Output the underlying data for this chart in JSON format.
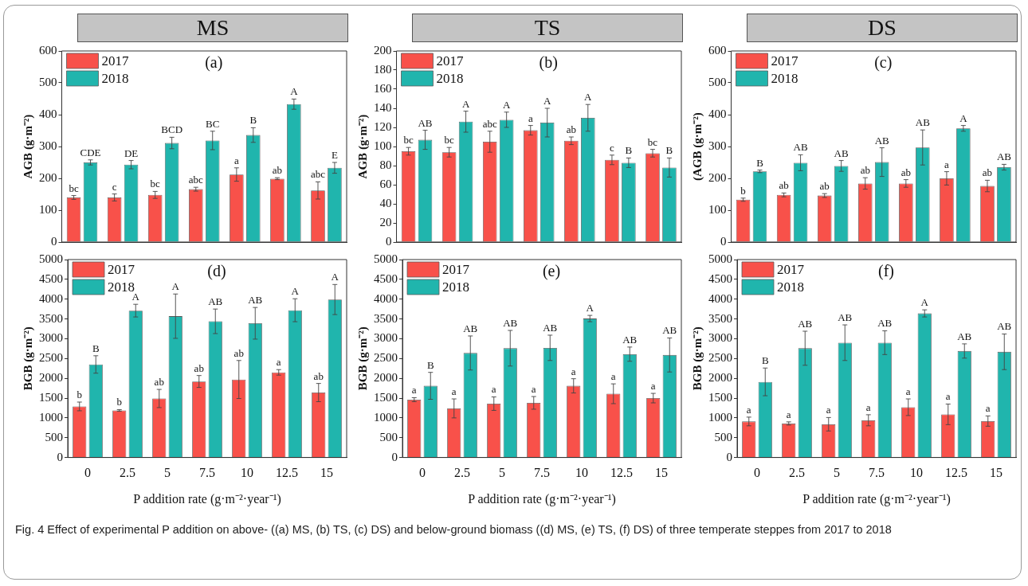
{
  "chart_data": [
    {
      "type": "bar",
      "title": "MS",
      "categories": [
        "0",
        "2.5",
        "5",
        "7.5",
        "10",
        "12.5",
        "15"
      ],
      "ylabel": "AGB (g·m⁻²)",
      "ylim": [
        0,
        600
      ],
      "yticks": [
        0,
        100,
        200,
        300,
        400,
        500,
        600
      ],
      "tick_labels": "y",
      "legend": "top left",
      "annotations": [
        "(a)"
      ],
      "series": [
        {
          "name": "2017",
          "color": "#f8514a",
          "values": [
            140,
            140,
            148,
            166,
            212,
            199,
            162
          ],
          "errors": [
            6,
            11,
            11,
            6,
            21,
            3,
            27
          ],
          "value_labels": [
            "bc",
            "c",
            "bc",
            "abc",
            "a",
            "ab",
            "abc"
          ]
        },
        {
          "name": "2018",
          "color": "#20b5ad",
          "values": [
            250,
            243,
            311,
            319,
            336,
            433,
            233
          ],
          "errors": [
            8,
            13,
            18,
            29,
            23,
            16,
            17
          ],
          "value_labels": [
            "CDE",
            "DE",
            "BCD",
            "BC",
            "B",
            "A",
            "E"
          ]
        }
      ]
    },
    {
      "type": "bar",
      "title": "TS",
      "categories": [
        "0",
        "2.5",
        "5",
        "7.5",
        "10",
        "12.5",
        "15"
      ],
      "ylabel": "AGB (g·m⁻²)",
      "ylim": [
        0,
        200
      ],
      "yticks": [
        0,
        20,
        40,
        60,
        80,
        100,
        120,
        140,
        160,
        180,
        200
      ],
      "tick_labels": "y",
      "legend": "top left",
      "annotations": [
        "(b)"
      ],
      "series": [
        {
          "name": "2017",
          "color": "#f8514a",
          "values": [
            95,
            94,
            105,
            117,
            106,
            86,
            93
          ],
          "errors": [
            4,
            5,
            11,
            5,
            4,
            5,
            4
          ],
          "value_labels": [
            "bc",
            "bc",
            "abc",
            "a",
            "ab",
            "c",
            "bc"
          ]
        },
        {
          "name": "2018",
          "color": "#20b5ad",
          "values": [
            107,
            126,
            128,
            125,
            130,
            83,
            78
          ],
          "errors": [
            10,
            11,
            8,
            15,
            14,
            5,
            10
          ],
          "value_labels": [
            "AB",
            "A",
            "A",
            "A",
            "A",
            "B",
            "B"
          ]
        }
      ]
    },
    {
      "type": "bar",
      "title": "DS",
      "categories": [
        "0",
        "2.5",
        "5",
        "7.5",
        "10",
        "12.5",
        "15"
      ],
      "ylabel": "(AGB (g·m⁻²)",
      "ylim": [
        0,
        600
      ],
      "yticks": [
        0,
        100,
        200,
        300,
        400,
        500,
        600
      ],
      "tick_labels": "y",
      "legend": "top left",
      "annotations": [
        "(c)"
      ],
      "series": [
        {
          "name": "2017",
          "color": "#f8514a",
          "values": [
            133,
            148,
            146,
            184,
            184,
            200,
            176
          ],
          "errors": [
            5,
            6,
            6,
            18,
            12,
            21,
            18
          ],
          "value_labels": [
            "b",
            "ab",
            "ab",
            "ab",
            "ab",
            "a",
            "ab"
          ]
        },
        {
          "name": "2018",
          "color": "#20b5ad",
          "values": [
            222,
            249,
            239,
            251,
            297,
            357,
            235
          ],
          "errors": [
            4,
            25,
            17,
            45,
            55,
            9,
            9
          ],
          "value_labels": [
            "B",
            "AB",
            "AB",
            "AB",
            "AB",
            "A",
            "AB"
          ]
        }
      ]
    },
    {
      "type": "bar",
      "categories": [
        "0",
        "2.5",
        "5",
        "7.5",
        "10",
        "12.5",
        "15"
      ],
      "xlabel": "P addition rate (g·m⁻²·year⁻¹)",
      "ylabel": "BGB (g·m⁻²)",
      "ylim": [
        0,
        5000
      ],
      "yticks": [
        0,
        500,
        1000,
        1500,
        2000,
        2500,
        3000,
        3500,
        4000,
        4500,
        5000
      ],
      "legend": "top left",
      "annotations": [
        "(d)"
      ],
      "series": [
        {
          "name": "2017",
          "color": "#f8514a",
          "values": [
            1290,
            1190,
            1490,
            1920,
            1970,
            2150,
            1640
          ],
          "errors": [
            110,
            20,
            230,
            150,
            480,
            70,
            230
          ],
          "value_labels": [
            "b",
            "b",
            "ab",
            "ab",
            "ab",
            "a",
            "ab"
          ]
        },
        {
          "name": "2018",
          "color": "#20b5ad",
          "values": [
            2350,
            3710,
            3570,
            3440,
            3390,
            3720,
            3990
          ],
          "errors": [
            220,
            160,
            560,
            310,
            400,
            290,
            380
          ],
          "value_labels": [
            "B",
            "A",
            "A",
            "AB",
            "AB",
            "A",
            "A"
          ]
        }
      ]
    },
    {
      "type": "bar",
      "categories": [
        "0",
        "2.5",
        "5",
        "7.5",
        "10",
        "12.5",
        "15"
      ],
      "xlabel": "P addition rate (g·m⁻²·year⁻¹)",
      "ylabel": "BGB (g·m⁻²)",
      "ylim": [
        0,
        5000
      ],
      "yticks": [
        0,
        500,
        1000,
        1500,
        2000,
        2500,
        3000,
        3500,
        4000,
        4500,
        5000
      ],
      "legend": "top left",
      "annotations": [
        "(e)"
      ],
      "series": [
        {
          "name": "2017",
          "color": "#f8514a",
          "values": [
            1460,
            1240,
            1360,
            1380,
            1810,
            1610,
            1500
          ],
          "errors": [
            50,
            240,
            170,
            160,
            180,
            250,
            120
          ],
          "value_labels": [
            "a",
            "a",
            "a",
            "a",
            "a",
            "a",
            "a"
          ]
        },
        {
          "name": "2018",
          "color": "#20b5ad",
          "values": [
            1810,
            2640,
            2760,
            2770,
            3510,
            2610,
            2590
          ],
          "errors": [
            340,
            430,
            450,
            320,
            80,
            180,
            430
          ],
          "value_labels": [
            "B",
            "AB",
            "AB",
            "AB",
            "A",
            "AB",
            "AB"
          ]
        }
      ]
    },
    {
      "type": "bar",
      "categories": [
        "0",
        "2.5",
        "5",
        "7.5",
        "10",
        "12.5",
        "15"
      ],
      "xlabel": "P addition rate (g·m⁻²·year⁻¹)",
      "ylabel": "BGB (g·m⁻²)",
      "ylim": [
        0,
        5000
      ],
      "yticks": [
        0,
        500,
        1000,
        1500,
        2000,
        2500,
        3000,
        3500,
        4000,
        4500,
        5000
      ],
      "legend": "top left",
      "annotations": [
        "(f)",
        "Fig. 4  Effect of experimental P addition on above- ((a) MS, (b) TS, (c) DS) and below-ground biomass ((d) MS, (e) TS, (f) DS) of three temperate steppes from 2017 to 2018"
      ],
      "series": [
        {
          "name": "2017",
          "color": "#f8514a",
          "values": [
            910,
            860,
            840,
            940,
            1270,
            1090,
            920
          ],
          "errors": [
            110,
            40,
            170,
            140,
            210,
            260,
            130
          ],
          "value_labels": [
            "a",
            "a",
            "a",
            "a",
            "a",
            "a",
            "a"
          ]
        },
        {
          "name": "2018",
          "color": "#20b5ad",
          "values": [
            1910,
            2760,
            2900,
            2900,
            3640,
            2690,
            2670
          ],
          "errors": [
            350,
            430,
            450,
            300,
            90,
            180,
            450
          ],
          "value_labels": [
            "B",
            "AB",
            "AB",
            "AB",
            "A",
            "AB",
            "AB"
          ]
        }
      ]
    }
  ]
}
